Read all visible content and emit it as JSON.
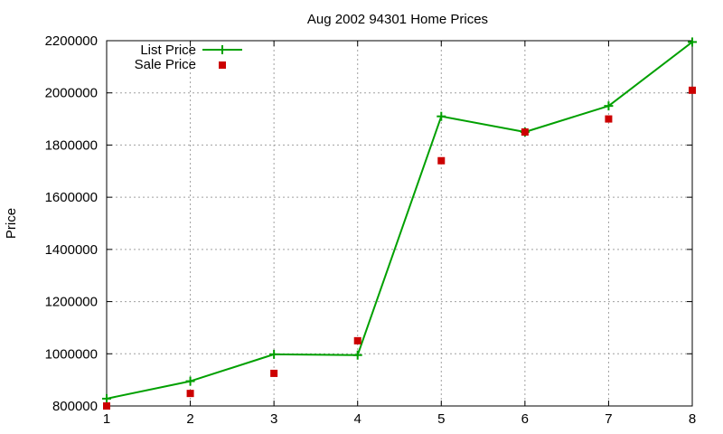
{
  "chart_data": {
    "type": "line",
    "title": "Aug 2002 94301 Home Prices",
    "xlabel": "",
    "ylabel": "Price",
    "xlim": [
      1,
      8
    ],
    "ylim": [
      800000,
      2200000
    ],
    "x_ticks": [
      1,
      2,
      3,
      4,
      5,
      6,
      7,
      8
    ],
    "y_ticks": [
      800000,
      1000000,
      1200000,
      1400000,
      1600000,
      1800000,
      2000000,
      2200000
    ],
    "grid": true,
    "legend_position": "top-left",
    "series": [
      {
        "name": "List Price",
        "style": "linespoints",
        "marker": "plus",
        "color": "#00a000",
        "x": [
          1,
          2,
          3,
          4,
          5,
          6,
          7,
          8
        ],
        "y": [
          828000,
          895000,
          998000,
          995000,
          1910000,
          1850000,
          1950000,
          2195000
        ]
      },
      {
        "name": "Sale Price",
        "style": "points",
        "marker": "square",
        "color": "#cc0000",
        "x": [
          1,
          2,
          3,
          4,
          5,
          6,
          7,
          8
        ],
        "y": [
          800000,
          848000,
          925000,
          1050000,
          1740000,
          1850000,
          1900000,
          2010000
        ]
      }
    ]
  }
}
